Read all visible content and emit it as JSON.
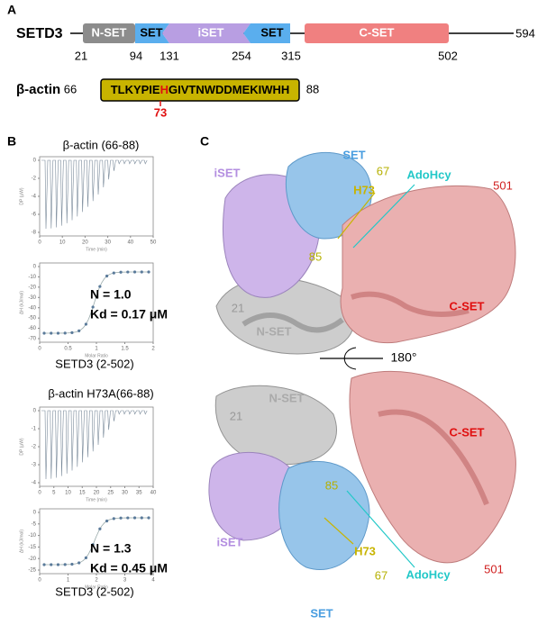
{
  "panel_a": {
    "label": "A",
    "protein": "SETD3",
    "domains": [
      "N-SET",
      "SET",
      "iSET",
      "SET",
      "C-SET"
    ],
    "positions": [
      21,
      94,
      131,
      254,
      315,
      502
    ],
    "length": 594,
    "peptide": {
      "name": "β-actin",
      "start": 66,
      "sequence_before": "TLKYPIE",
      "site_residue": "H",
      "sequence_after": "GIVTNWDDMEKIWHH",
      "end": 88,
      "site": 73
    }
  },
  "panel_b": {
    "label": "B",
    "experiments": [
      {
        "title": "β-actin (66-88)",
        "raw": {
          "ylabel": "DP (μW)",
          "xlabel": "Time (min)",
          "yticks": [
            0,
            -2,
            -4,
            -6,
            -8
          ],
          "xticks": [
            0,
            10,
            20,
            30,
            40,
            50
          ]
        },
        "fit": {
          "ylabel": "ΔH (kJ/mol)",
          "xlabel": "Molar Ratio",
          "yticks": [
            0,
            -10,
            -20,
            -30,
            -40,
            -50,
            -60,
            -70
          ],
          "xticks": [
            0,
            0.5,
            1,
            1.5,
            2
          ]
        },
        "n": "N = 1.0",
        "kd": "Kd = 0.17 μM",
        "protein": "SETD3 (2-502)"
      },
      {
        "title": "β-actin H73A(66-88)",
        "raw": {
          "ylabel": "DP (μW)",
          "xlabel": "Time (min)",
          "yticks": [
            0,
            -1,
            -2,
            -3,
            -4
          ],
          "xticks": [
            0,
            5,
            10,
            15,
            20,
            25,
            30,
            35,
            40
          ]
        },
        "fit": {
          "ylabel": "ΔH (kJ/mol)",
          "xlabel": "Molar Ratio",
          "yticks": [
            0,
            -5,
            -10,
            -15,
            -20,
            -25
          ],
          "xticks": [
            0,
            1,
            2,
            3,
            4
          ]
        },
        "n": "N = 1.3",
        "kd": "Kd = 0.45 μM",
        "protein": "SETD3 (2-502)"
      }
    ]
  },
  "panel_c": {
    "label": "C",
    "rotation": "180°",
    "top": {
      "set": "SET",
      "iset": "iSET",
      "res67": "67",
      "h73": "H73",
      "adohcy": "AdoHcy",
      "res501": "501",
      "res85": "85",
      "res21": "21",
      "nset": "N-SET",
      "cset": "C-SET"
    },
    "bottom": {
      "nset": "N-SET",
      "res21": "21",
      "cset": "C-SET",
      "res85": "85",
      "iset": "iSET",
      "h73": "H73",
      "adohcy": "AdoHcy",
      "res501": "501",
      "res67": "67",
      "set": "SET"
    }
  }
}
